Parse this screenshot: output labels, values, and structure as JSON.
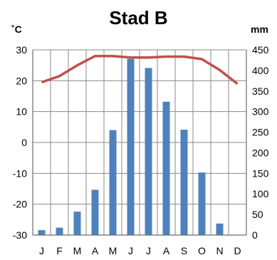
{
  "chart_data": {
    "type": "bar",
    "title": "Stad B",
    "left_unit": "˚C",
    "right_unit": "mm",
    "categories": [
      "J",
      "F",
      "M",
      "A",
      "M",
      "J",
      "J",
      "A",
      "S",
      "O",
      "N",
      "D"
    ],
    "left_axis": {
      "min": -30,
      "max": 30,
      "step": 10,
      "ticks": [
        "30",
        "20",
        "10",
        "0",
        "-10",
        "-20",
        "-30"
      ]
    },
    "right_axis": {
      "min": 0,
      "max": 450,
      "step": 50,
      "ticks": [
        "450",
        "400",
        "350",
        "300",
        "250",
        "200",
        "150",
        "100",
        "50",
        "0"
      ]
    },
    "grid": true,
    "series": [
      {
        "type": "bar",
        "axis": "right",
        "color": "#4f81bd",
        "values": [
          12,
          18,
          57,
          110,
          255,
          428,
          406,
          324,
          256,
          152,
          28,
          0
        ]
      },
      {
        "type": "line",
        "axis": "left",
        "color": "#c0504d",
        "values": [
          19.5,
          21.5,
          25,
          28,
          28,
          27.5,
          27.5,
          27.8,
          27.8,
          27,
          23.5,
          19
        ]
      }
    ]
  }
}
